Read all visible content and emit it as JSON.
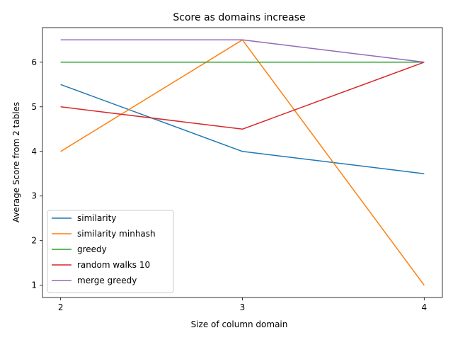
{
  "chart_data": {
    "type": "line",
    "title": "Score as domains increase",
    "xlabel": "Size of column domain",
    "ylabel": "Average Score from 2 tables",
    "x": [
      2,
      3,
      4
    ],
    "xlim": [
      1.9,
      4.1
    ],
    "ylim": [
      0.725,
      6.775
    ],
    "xticks": [
      2,
      3,
      4
    ],
    "yticks": [
      1,
      2,
      3,
      4,
      5,
      6
    ],
    "grid": false,
    "legend_position": "lower-left",
    "series": [
      {
        "name": "similarity",
        "color": "#1f77b4",
        "values": [
          5.5,
          4.0,
          3.5
        ]
      },
      {
        "name": "similarity minhash",
        "color": "#ff7f0e",
        "values": [
          4.0,
          6.5,
          1.0
        ]
      },
      {
        "name": "greedy",
        "color": "#2ca02c",
        "values": [
          6.0,
          6.0,
          6.0
        ]
      },
      {
        "name": "random walks 10",
        "color": "#d62728",
        "values": [
          5.0,
          4.5,
          6.0
        ]
      },
      {
        "name": "merge greedy",
        "color": "#9467bd",
        "values": [
          6.5,
          6.5,
          6.0
        ]
      }
    ]
  }
}
